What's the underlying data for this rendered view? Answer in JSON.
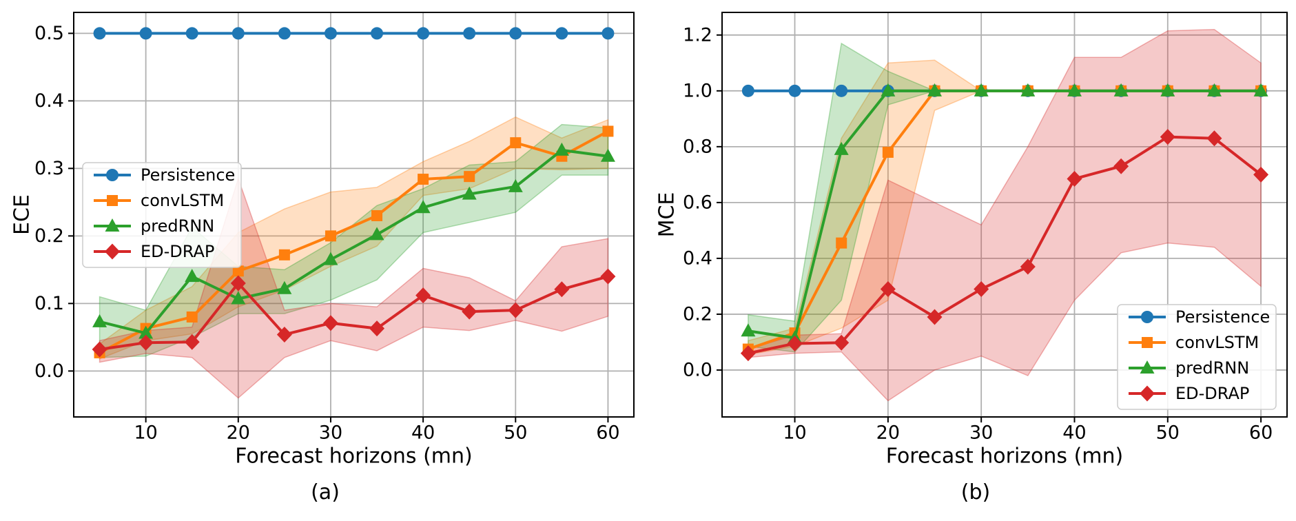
{
  "figure": {
    "background": "#ffffff",
    "captions": [
      {
        "label": "(a)"
      },
      {
        "label": "(b)"
      }
    ]
  },
  "colors": {
    "persistence": "#1f77b4",
    "convlstm": "#ff7f0e",
    "predrnn": "#2ca02c",
    "ed_drap": "#d62728",
    "grid": "#b0b0b0",
    "spine": "#000000",
    "legend_border": "#cccccc",
    "legend_bg": "rgba(255,255,255,0.85)"
  },
  "chart_data": [
    {
      "type": "line",
      "panel": "a",
      "title": "",
      "xlabel": "Forecast horizons (mn)",
      "ylabel": "ECE",
      "x": [
        5,
        10,
        15,
        20,
        25,
        30,
        35,
        40,
        45,
        50,
        55,
        60
      ],
      "xticks": [
        10,
        20,
        30,
        40,
        50,
        60
      ],
      "xtick_labels": [
        "10",
        "20",
        "30",
        "40",
        "50",
        "60"
      ],
      "yticks": [
        0.0,
        0.1,
        0.2,
        0.3,
        0.4,
        0.5
      ],
      "ytick_labels": [
        "0.0",
        "0.1",
        "0.2",
        "0.3",
        "0.4",
        "0.5"
      ],
      "xlim": [
        2.2,
        62.8
      ],
      "ylim": [
        -0.068,
        0.531
      ],
      "grid": true,
      "legend_position": "center left",
      "series": [
        {
          "name": "Persistence",
          "color": "#1f77b4",
          "marker": "circle",
          "values": [
            0.5,
            0.5,
            0.5,
            0.5,
            0.5,
            0.5,
            0.5,
            0.5,
            0.5,
            0.5,
            0.5,
            0.5
          ]
        },
        {
          "name": "convLSTM",
          "color": "#ff7f0e",
          "marker": "square",
          "values": [
            0.027,
            0.063,
            0.08,
            0.148,
            0.172,
            0.2,
            0.23,
            0.284,
            0.288,
            0.338,
            0.318,
            0.355
          ],
          "band_lower": [
            0.018,
            0.045,
            0.055,
            0.095,
            0.12,
            0.155,
            0.185,
            0.26,
            0.27,
            0.3,
            0.298,
            0.3
          ],
          "band_upper": [
            0.04,
            0.09,
            0.125,
            0.205,
            0.24,
            0.265,
            0.272,
            0.31,
            0.34,
            0.376,
            0.345,
            0.372
          ]
        },
        {
          "name": "predRNN",
          "color": "#2ca02c",
          "marker": "triangle",
          "values": [
            0.073,
            0.056,
            0.14,
            0.107,
            0.122,
            0.165,
            0.202,
            0.242,
            0.262,
            0.273,
            0.327,
            0.318
          ],
          "band_lower": [
            0.02,
            0.022,
            0.05,
            0.085,
            0.085,
            0.105,
            0.135,
            0.205,
            0.22,
            0.235,
            0.29,
            0.29
          ],
          "band_upper": [
            0.11,
            0.09,
            0.213,
            0.155,
            0.15,
            0.19,
            0.245,
            0.27,
            0.305,
            0.31,
            0.365,
            0.36
          ]
        },
        {
          "name": "ED-DRAP",
          "color": "#d62728",
          "marker": "diamond",
          "values": [
            0.032,
            0.042,
            0.043,
            0.13,
            0.054,
            0.071,
            0.063,
            0.112,
            0.088,
            0.09,
            0.121,
            0.14
          ],
          "band_lower": [
            0.013,
            0.026,
            0.02,
            -0.04,
            0.02,
            0.045,
            0.03,
            0.065,
            0.06,
            0.075,
            0.059,
            0.081
          ],
          "band_upper": [
            0.045,
            0.06,
            0.065,
            0.285,
            0.09,
            0.1,
            0.095,
            0.152,
            0.138,
            0.104,
            0.184,
            0.196
          ]
        }
      ]
    },
    {
      "type": "line",
      "panel": "b",
      "title": "",
      "xlabel": "Forecast horizons (mn)",
      "ylabel": "MCE",
      "x": [
        5,
        10,
        15,
        20,
        25,
        30,
        35,
        40,
        45,
        50,
        55,
        60
      ],
      "xticks": [
        10,
        20,
        30,
        40,
        50,
        60
      ],
      "xtick_labels": [
        "10",
        "20",
        "30",
        "40",
        "50",
        "60"
      ],
      "yticks": [
        0.0,
        0.2,
        0.4,
        0.6,
        0.8,
        1.0,
        1.2
      ],
      "ytick_labels": [
        "0.0",
        "0.2",
        "0.4",
        "0.6",
        "0.8",
        "1.0",
        "1.2"
      ],
      "xlim": [
        2.2,
        62.8
      ],
      "ylim": [
        -0.168,
        1.281
      ],
      "grid": true,
      "legend_position": "lower right",
      "series": [
        {
          "name": "Persistence",
          "color": "#1f77b4",
          "marker": "circle",
          "values": [
            1.0,
            1.0,
            1.0,
            1.0,
            1.0,
            1.0,
            1.0,
            1.0,
            1.0,
            1.0,
            1.0,
            1.0
          ]
        },
        {
          "name": "convLSTM",
          "color": "#ff7f0e",
          "marker": "square",
          "values": [
            0.075,
            0.133,
            0.455,
            0.78,
            1.0,
            1.0,
            1.0,
            1.0,
            1.0,
            1.0,
            1.0,
            1.0
          ],
          "band_lower": [
            0.055,
            0.085,
            0.15,
            0.25,
            0.93,
            1.0,
            1.0,
            1.0,
            1.0,
            1.0,
            1.0,
            1.0
          ],
          "band_upper": [
            0.105,
            0.15,
            0.83,
            1.1,
            1.11,
            1.0,
            1.0,
            1.0,
            1.0,
            1.0,
            1.0,
            1.0
          ]
        },
        {
          "name": "predRNN",
          "color": "#2ca02c",
          "marker": "triangle",
          "values": [
            0.14,
            0.115,
            0.79,
            1.0,
            1.0,
            1.0,
            1.0,
            1.0,
            1.0,
            1.0,
            1.0,
            1.0
          ],
          "band_lower": [
            0.085,
            0.065,
            0.25,
            0.95,
            1.0,
            1.0,
            1.0,
            1.0,
            1.0,
            1.0,
            1.0,
            1.0
          ],
          "band_upper": [
            0.198,
            0.175,
            1.17,
            1.07,
            1.0,
            1.0,
            1.0,
            1.0,
            1.0,
            1.0,
            1.0,
            1.0
          ]
        },
        {
          "name": "ED-DRAP",
          "color": "#d62728",
          "marker": "diamond",
          "values": [
            0.06,
            0.095,
            0.098,
            0.29,
            0.19,
            0.29,
            0.37,
            0.685,
            0.73,
            0.835,
            0.83,
            0.7
          ],
          "band_lower": [
            0.045,
            0.06,
            0.065,
            -0.11,
            0.0,
            0.05,
            -0.02,
            0.25,
            0.42,
            0.455,
            0.44,
            0.3
          ],
          "band_upper": [
            0.075,
            0.125,
            0.13,
            0.68,
            0.6,
            0.52,
            0.8,
            1.12,
            1.12,
            1.215,
            1.22,
            1.1
          ]
        }
      ]
    }
  ]
}
